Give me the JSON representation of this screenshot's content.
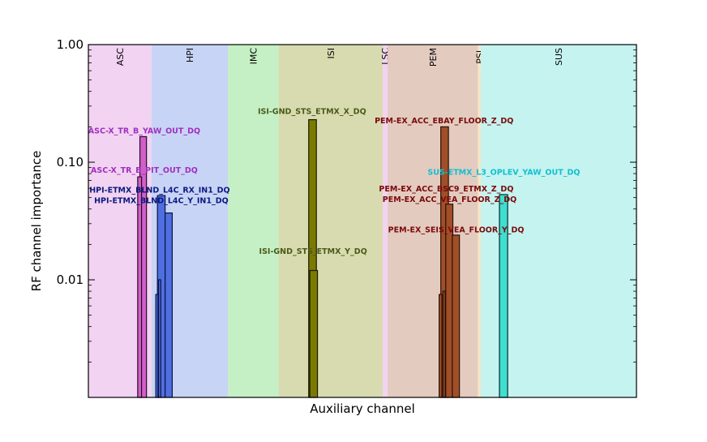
{
  "chart_data": {
    "type": "bar",
    "xlabel": "Auxiliary channel",
    "ylabel": "RF channel importance",
    "yscale": "log",
    "ylim": [
      0.001,
      1.0
    ],
    "y_tick_labels": [
      "1.00",
      "0.10",
      "0.01"
    ],
    "y_tick_values": [
      1.0,
      0.1,
      0.01
    ],
    "x_range": [
      0,
      100
    ],
    "grid": false,
    "subsystems": [
      {
        "name": "ASC",
        "start": 0,
        "end": 11.5,
        "color": "#f2d3f2"
      },
      {
        "name": "HPI",
        "start": 11.5,
        "end": 25.5,
        "color": "#c8d4f5"
      },
      {
        "name": "IMC",
        "start": 25.5,
        "end": 34.7,
        "color": "#c5f0c5"
      },
      {
        "name": "ISI",
        "start": 34.7,
        "end": 53.7,
        "color": "#d8dbb0"
      },
      {
        "name": "LSC",
        "start": 53.7,
        "end": 54.6,
        "color": "#f2d3f2"
      },
      {
        "name": "PEM",
        "start": 54.6,
        "end": 71.1,
        "color": "#e3cbc0"
      },
      {
        "name": "PSL",
        "start": 71.1,
        "end": 71.6,
        "color": "#f5e6c5"
      },
      {
        "name": "SUS",
        "start": 71.6,
        "end": 100,
        "color": "#c5f3f0"
      }
    ],
    "series": [
      {
        "subsystem": "ASC",
        "fill": "#d060c8",
        "stroke": "#2a0a28",
        "bars": [
          {
            "x": 9.4,
            "w": 1.2,
            "value": 0.165
          },
          {
            "x": 9.0,
            "w": 0.7,
            "value": 0.075
          }
        ]
      },
      {
        "subsystem": "HPI",
        "fill": "#4f6fe0",
        "stroke": "#0a1240",
        "bars": [
          {
            "x": 12.6,
            "w": 1.4,
            "value": 0.052
          },
          {
            "x": 14.0,
            "w": 1.3,
            "value": 0.037
          },
          {
            "x": 12.3,
            "w": 0.4,
            "value": 0.0075
          },
          {
            "x": 12.8,
            "w": 0.4,
            "value": 0.01
          }
        ]
      },
      {
        "subsystem": "ISI",
        "fill": "#7a7a00",
        "stroke": "#1a1a00",
        "bars": [
          {
            "x": 40.2,
            "w": 1.4,
            "value": 0.23
          },
          {
            "x": 40.4,
            "w": 1.4,
            "value": 0.012
          }
        ]
      },
      {
        "subsystem": "PEM",
        "fill": "#a04f28",
        "stroke": "#2a1005",
        "bars": [
          {
            "x": 64.3,
            "w": 1.4,
            "value": 0.2
          },
          {
            "x": 65.2,
            "w": 1.3,
            "value": 0.044
          },
          {
            "x": 66.4,
            "w": 1.3,
            "value": 0.024
          },
          {
            "x": 64.0,
            "w": 0.5,
            "value": 0.0075
          },
          {
            "x": 64.7,
            "w": 0.4,
            "value": 0.008
          }
        ]
      },
      {
        "subsystem": "SUS",
        "fill": "#40ddd0",
        "stroke": "#062a28",
        "bars": [
          {
            "x": 75.0,
            "w": 1.5,
            "value": 0.053
          }
        ]
      }
    ],
    "annotations": [
      {
        "text": "ASC-X_TR_B_YAW_OUT_DQ",
        "x": 10.2,
        "value": 0.185,
        "color": "#a030c0"
      },
      {
        "text": "ASC-X_TR_B_PIT_OUT_DQ",
        "x": 10.2,
        "value": 0.085,
        "color": "#a030c0"
      },
      {
        "text": "HPI-ETMX_BLND_L4C_RX_IN1_DQ",
        "x": 13.0,
        "value": 0.058,
        "color": "#0a1a80"
      },
      {
        "text": "HPI-ETMX_BLND_L4C_Y_IN1_DQ",
        "x": 13.3,
        "value": 0.047,
        "color": "#0a1a80"
      },
      {
        "text": "ISI-GND_STS_ETMX_X_DQ",
        "x": 40.8,
        "value": 0.27,
        "color": "#4a5a18"
      },
      {
        "text": "ISI-GND_STS_ETMX_Y_DQ",
        "x": 41.0,
        "value": 0.0175,
        "color": "#4a5a18"
      },
      {
        "text": "PEM-EX_ACC_EBAY_FLOOR_Z_DQ",
        "x": 64.9,
        "value": 0.225,
        "color": "#7a0a0a"
      },
      {
        "text": "PEM-EX_ACC_BSC9_ETMX_Z_DQ",
        "x": 65.3,
        "value": 0.059,
        "color": "#7a0a0a"
      },
      {
        "text": "PEM-EX_ACC_VEA_FLOOR_Z_DQ",
        "x": 65.9,
        "value": 0.048,
        "color": "#7a0a0a"
      },
      {
        "text": "PEM-EX_SEIS_VEA_FLOOR_Y_DQ",
        "x": 67.1,
        "value": 0.0265,
        "color": "#7a0a0a"
      },
      {
        "text": "SUS-ETMX_L3_OPLEV_YAW_OUT_DQ",
        "x": 75.8,
        "value": 0.082,
        "color": "#10c0d0"
      }
    ]
  }
}
